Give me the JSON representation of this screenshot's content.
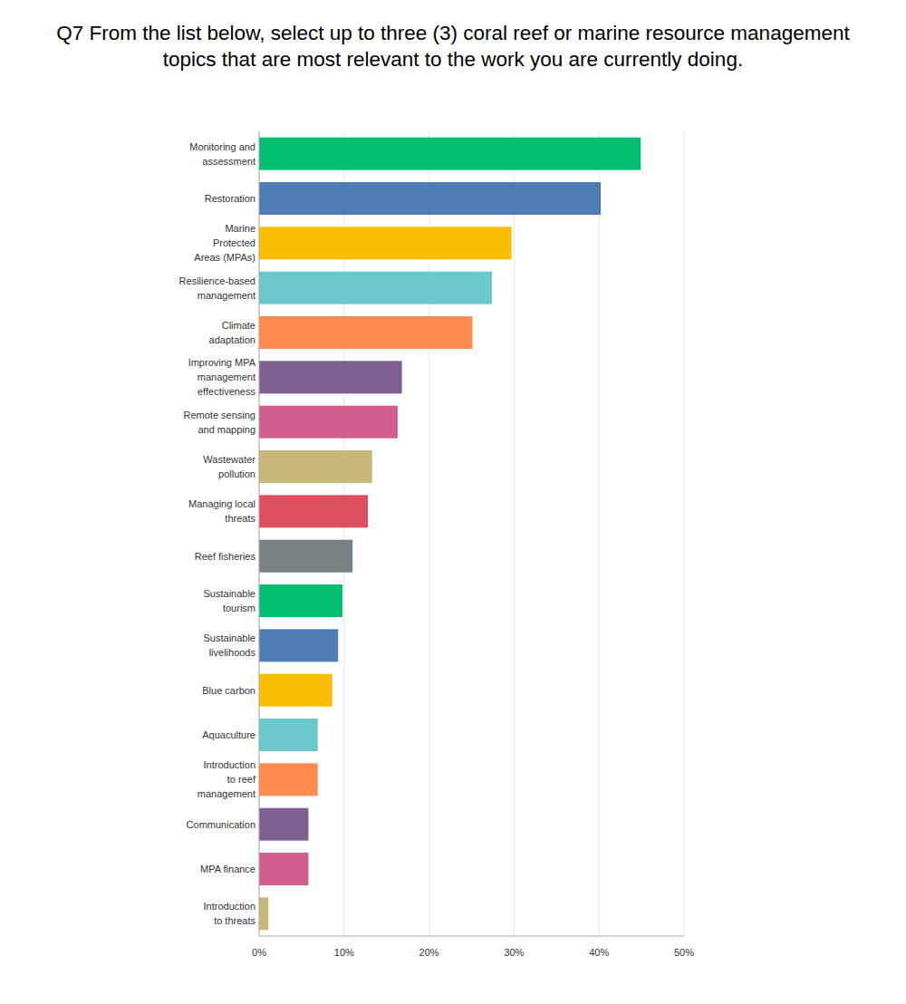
{
  "chart_data": {
    "type": "bar",
    "orientation": "horizontal",
    "title": "Q7 From the list below, select up to three (3) coral reef or marine resource management topics that are most relevant to the work you are currently doing.",
    "categories": [
      "Monitoring and assessment",
      "Restoration",
      "Marine Protected Areas (MPAs)",
      "Resilience-based management",
      "Climate adaptation",
      "Improving MPA management effectiveness",
      "Remote sensing and mapping",
      "Wastewater pollution",
      "Managing local threats",
      "Reef fisheries",
      "Sustainable tourism",
      "Sustainable livelihoods",
      "Blue carbon",
      "Aquaculture",
      "Introduction to reef management",
      "Communication",
      "MPA finance",
      "Introduction to threats"
    ],
    "values": [
      44.9,
      40.2,
      29.7,
      27.4,
      25.1,
      16.8,
      16.3,
      13.3,
      12.8,
      11.0,
      9.8,
      9.3,
      8.6,
      6.9,
      6.9,
      5.8,
      5.8,
      1.1
    ],
    "colors": [
      "#00bf6f",
      "#507cb6",
      "#f9be00",
      "#6bc8cd",
      "#ff8b4f",
      "#7f5f8f",
      "#d25f90",
      "#c7b879",
      "#dc5060",
      "#7a8185",
      "#00bf6f",
      "#507cb6",
      "#f9be00",
      "#6bc8cd",
      "#ff8b4f",
      "#7f5f8f",
      "#d25f90",
      "#c7b879"
    ],
    "xlim": [
      0,
      50
    ],
    "xticks": [
      {
        "value": 0,
        "label": "0%"
      },
      {
        "value": 10,
        "label": "10%"
      },
      {
        "value": 20,
        "label": "20%"
      },
      {
        "value": 30,
        "label": "30%"
      },
      {
        "value": 40,
        "label": "40%"
      },
      {
        "value": 50,
        "label": "50%"
      }
    ],
    "grid": true
  }
}
